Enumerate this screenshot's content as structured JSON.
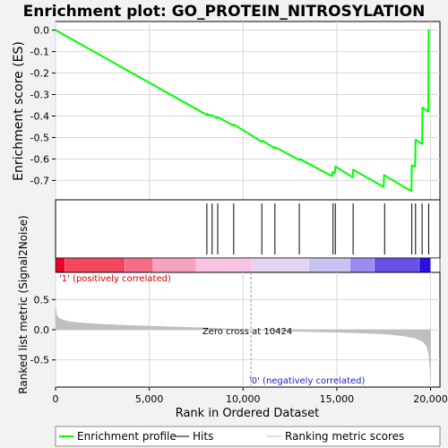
{
  "chart_data": {
    "type": "line",
    "title": "Enrichment plot: GO_PROTEIN_NITROSYLATION",
    "xlabel": "Rank in Ordered Dataset",
    "xlim": [
      0,
      20500
    ],
    "x_ticks": [
      0,
      5000,
      10000,
      15000,
      20000
    ],
    "x_tick_labels": [
      "0",
      "5,000",
      "10,000",
      "15,000",
      "20,000"
    ],
    "es_panel": {
      "ylabel": "Enrichment score (ES)",
      "ylim": [
        -0.79,
        0.04
      ],
      "y_ticks": [
        0.0,
        -0.1,
        -0.2,
        -0.3,
        -0.4,
        -0.5,
        -0.6,
        -0.7
      ],
      "y_tick_labels": [
        "0.0",
        "-0.1",
        "-0.2",
        "-0.3",
        "-0.4",
        "-0.5",
        "-0.6",
        "-0.7"
      ],
      "grid": true,
      "series": [
        {
          "name": "Enrichment profile",
          "color": "#00ff00",
          "x": [
            0,
            8070,
            8080,
            8300,
            8330,
            8600,
            8650,
            9500,
            9520,
            11000,
            11020,
            11700,
            11720,
            13000,
            13020,
            14750,
            14770,
            14900,
            14920,
            15850,
            15870,
            17500,
            17520,
            18980,
            19000,
            19180,
            19200,
            19550,
            19570,
            19880,
            19900,
            19950
          ],
          "y": [
            0.0,
            -0.395,
            -0.39,
            -0.4,
            -0.395,
            -0.41,
            -0.405,
            -0.445,
            -0.44,
            -0.52,
            -0.515,
            -0.55,
            -0.545,
            -0.605,
            -0.6,
            -0.68,
            -0.66,
            -0.665,
            -0.635,
            -0.685,
            -0.65,
            -0.73,
            -0.675,
            -0.75,
            -0.63,
            -0.635,
            -0.51,
            -0.53,
            -0.36,
            -0.38,
            0.0,
            0.0
          ]
        }
      ]
    },
    "hits": {
      "name": "Hits",
      "color": "#000000",
      "x": [
        8070,
        8350,
        8650,
        9500,
        11000,
        11700,
        13000,
        14800,
        14920,
        15870,
        17550,
        19000,
        19200,
        19550,
        19900
      ]
    },
    "rank_bar": {
      "colors": [
        "#e8002a",
        "#f2475f",
        "#f46f85",
        "#f7a3bf",
        "#f9c4e4",
        "#e3d4f2",
        "#c8c4f2",
        "#9a8cf0",
        "#6a50e8",
        "#2a10e0"
      ],
      "segments_x": [
        0,
        500,
        3700,
        5200,
        7500,
        10500,
        13500,
        15700,
        17000,
        19400,
        20000
      ]
    },
    "metric_panel": {
      "ylabel": "Ranked list metric (Signal2Noise)",
      "ylim": [
        -0.95,
        0.95
      ],
      "y_ticks": [
        0.5,
        0.0,
        -0.5
      ],
      "y_tick_labels": [
        "0.5",
        "0.0",
        "-0.5"
      ],
      "grid": true,
      "zero_cross": 10424,
      "zero_cross_label": "Zero cross at 10424",
      "positive_label": "'1' (positively correlated)",
      "negative_label": "'0' (negatively correlated)",
      "series": [
        {
          "name": "Ranking metric scores",
          "color": "#bfbfbf",
          "x": [
            0,
            50,
            150,
            400,
            800,
            1500,
            2500,
            4000,
            6000,
            8000,
            10424,
            12000,
            14000,
            16000,
            17500,
            18500,
            19200,
            19600,
            19800,
            19900,
            19970,
            20000
          ],
          "y": [
            0.38,
            0.26,
            0.2,
            0.16,
            0.13,
            0.11,
            0.09,
            0.07,
            0.05,
            0.03,
            0.0,
            -0.02,
            -0.035,
            -0.05,
            -0.07,
            -0.1,
            -0.14,
            -0.2,
            -0.28,
            -0.4,
            -0.65,
            -0.85
          ]
        }
      ]
    },
    "legend": {
      "placement": "bottom",
      "entries": [
        {
          "label": "Enrichment profile",
          "color": "#00ff00"
        },
        {
          "label": "Hits",
          "color": "#000000"
        },
        {
          "label": "Ranking metric scores",
          "color": "#bfbfbf"
        }
      ]
    }
  }
}
